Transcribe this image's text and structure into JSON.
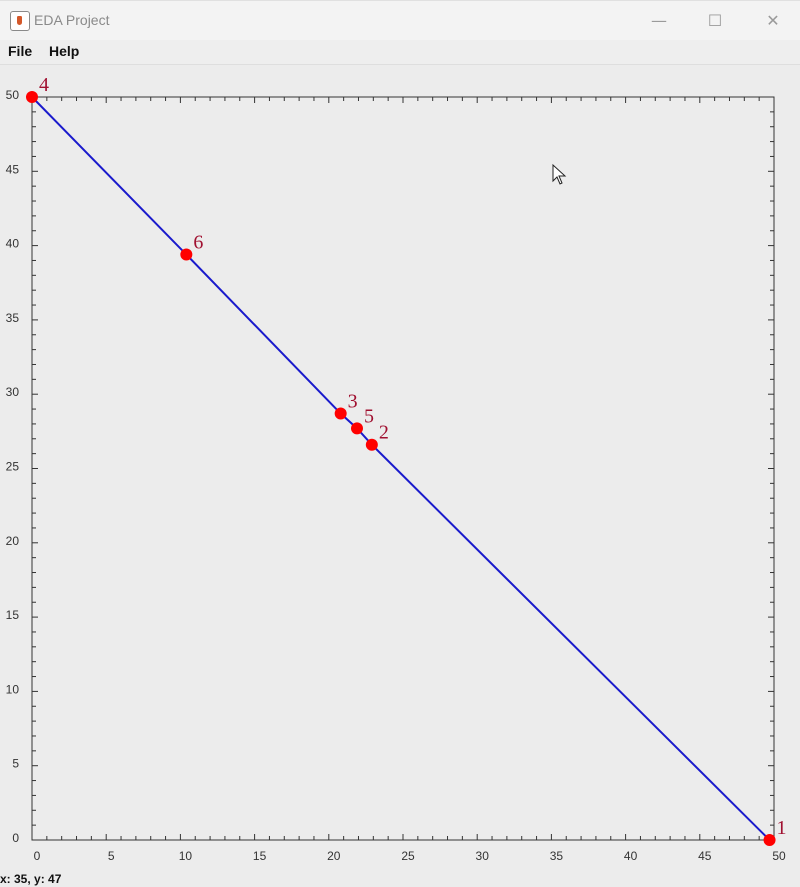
{
  "window": {
    "title": "EDA Project",
    "minimize_icon": "minimize-icon",
    "maximize_icon": "maximize-icon",
    "close_icon": "close-icon"
  },
  "menu": {
    "file": "File",
    "help": "Help"
  },
  "status": {
    "text": "x: 35, y: 47"
  },
  "chart_data": {
    "type": "scatter",
    "title": "",
    "xlabel": "",
    "ylabel": "",
    "xlim": [
      0,
      50
    ],
    "ylim": [
      0,
      50
    ],
    "x_ticks": [
      "0",
      "5",
      "10",
      "15",
      "20",
      "25",
      "30",
      "35",
      "40",
      "45",
      "50"
    ],
    "y_ticks": [
      "0",
      "5",
      "10",
      "15",
      "20",
      "25",
      "30",
      "35",
      "40",
      "45",
      "50"
    ],
    "grid": false,
    "colors": {
      "line": "#1a1acc",
      "point": "#ff0000",
      "label": "#a01030"
    },
    "points": [
      {
        "label": "1",
        "x": 49.7,
        "y": 0
      },
      {
        "label": "2",
        "x": 22.9,
        "y": 26.6
      },
      {
        "label": "3",
        "x": 20.8,
        "y": 28.7
      },
      {
        "label": "4",
        "x": 0,
        "y": 50
      },
      {
        "label": "5",
        "x": 21.9,
        "y": 27.7
      },
      {
        "label": "6",
        "x": 10.4,
        "y": 39.4
      }
    ],
    "line_order": [
      "4",
      "6",
      "3",
      "5",
      "2",
      "1"
    ]
  }
}
